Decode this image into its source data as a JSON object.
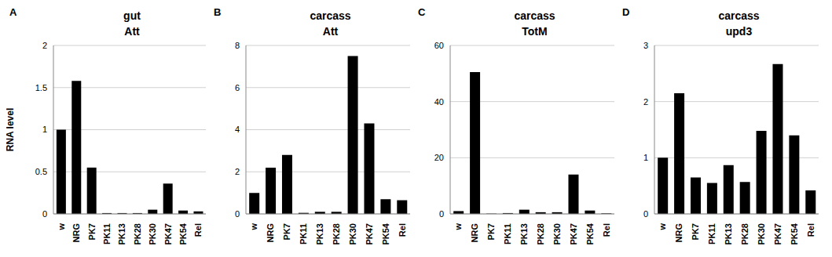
{
  "chart_data": [
    {
      "type": "bar",
      "panel_label": "A",
      "title": "gut",
      "subtitle": "Att",
      "y_label": "RNA level",
      "categories": [
        "w",
        "NRG",
        "PK7",
        "PK11",
        "PK13",
        "PK28",
        "PK30",
        "PK47",
        "PK54",
        "Rel"
      ],
      "values": [
        1.0,
        1.58,
        0.55,
        0.01,
        0.01,
        0.01,
        0.05,
        0.36,
        0.04,
        0.03
      ],
      "color": "#000000",
      "ylim": [
        0,
        2
      ],
      "yticks": [
        0,
        0.5,
        1,
        1.5,
        2
      ],
      "grid": true
    },
    {
      "type": "bar",
      "panel_label": "B",
      "title": "carcass",
      "subtitle": "Att",
      "categories": [
        "w",
        "NRG",
        "PK7",
        "PK11",
        "PK13",
        "PK28",
        "PK30",
        "PK47",
        "PK54",
        "Rel"
      ],
      "values": [
        1.0,
        2.2,
        2.8,
        0.05,
        0.1,
        0.1,
        7.5,
        4.3,
        0.7,
        0.65
      ],
      "color": "#000000",
      "ylim": [
        0,
        8
      ],
      "yticks": [
        0,
        2,
        4,
        6,
        8
      ],
      "grid": true
    },
    {
      "type": "bar",
      "panel_label": "C",
      "title": "carcass",
      "subtitle": "TotM",
      "categories": [
        "w",
        "NRG",
        "PK7",
        "PK11",
        "PK13",
        "PK28",
        "PK30",
        "PK47",
        "PK54",
        "Rel"
      ],
      "values": [
        1.0,
        50.5,
        0.1,
        0.3,
        1.5,
        0.6,
        0.6,
        14,
        1.2,
        0.2
      ],
      "color": "#000000",
      "ylim": [
        0,
        60
      ],
      "yticks": [
        0,
        20,
        40,
        60
      ],
      "grid": true
    },
    {
      "type": "bar",
      "panel_label": "D",
      "title": "carcass",
      "subtitle": "upd3",
      "categories": [
        "w",
        "NRG",
        "PK7",
        "PK11",
        "PK13",
        "PK28",
        "PK30",
        "PK47",
        "PK54",
        "Rel"
      ],
      "values": [
        1.0,
        2.15,
        0.65,
        0.55,
        0.87,
        0.57,
        1.48,
        2.67,
        1.4,
        0.42
      ],
      "color": "#000000",
      "ylim": [
        0,
        3
      ],
      "yticks": [
        0,
        1,
        2,
        3
      ],
      "grid": true
    }
  ]
}
